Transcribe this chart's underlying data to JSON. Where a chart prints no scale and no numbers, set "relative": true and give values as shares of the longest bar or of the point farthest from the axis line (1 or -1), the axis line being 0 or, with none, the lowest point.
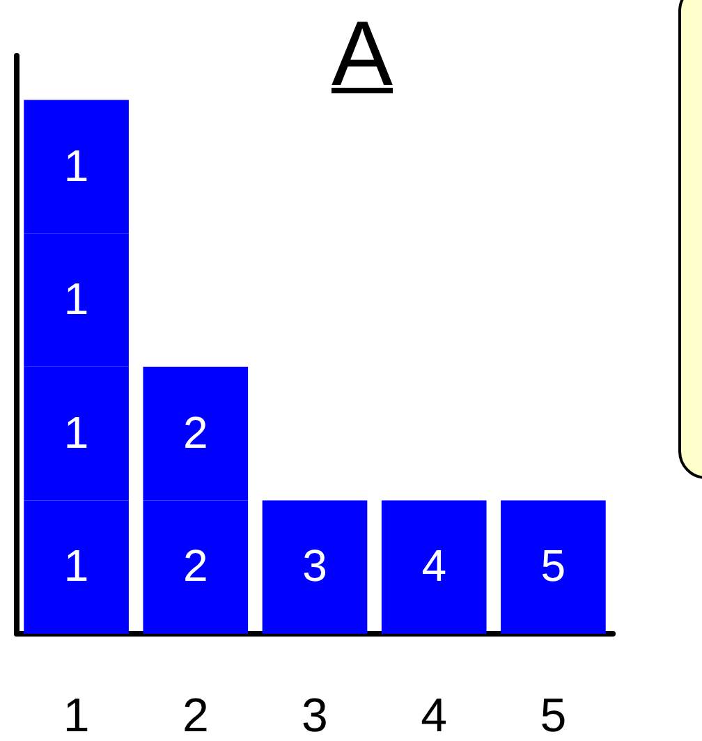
{
  "chart_data": {
    "type": "bar",
    "title": "A",
    "stacked": true,
    "relative": true,
    "categories": [
      "1",
      "2",
      "3",
      "4",
      "5"
    ],
    "grid": false,
    "series": [
      {
        "color": "#0000ff",
        "values": [
          0.25,
          0.25,
          0.25,
          0.25,
          0.25
        ]
      },
      {
        "color": "#0000ff",
        "values": [
          0.25,
          0.25,
          null,
          null,
          null
        ]
      },
      {
        "color": "#0000ff",
        "values": [
          0.25,
          null,
          null,
          null,
          null
        ]
      },
      {
        "color": "#0000ff",
        "values": [
          0.25,
          null,
          null,
          null,
          null
        ]
      }
    ],
    "annotations": [
      {
        "text": "1",
        "x": "1",
        "y": 0.25
      },
      {
        "text": "2",
        "x": "2",
        "y": 0.25
      },
      {
        "text": "3",
        "x": "3",
        "y": 0.25
      },
      {
        "text": "4",
        "x": "4",
        "y": 0.25
      },
      {
        "text": "5",
        "x": "5",
        "y": 0.25
      },
      {
        "text": "1",
        "x": "1",
        "y": 0.5
      },
      {
        "text": "2",
        "x": "2",
        "y": 0.5
      },
      {
        "text": "1",
        "x": "1",
        "y": 0.75
      },
      {
        "text": "1",
        "x": "1",
        "y": 1
      }
    ]
  }
}
